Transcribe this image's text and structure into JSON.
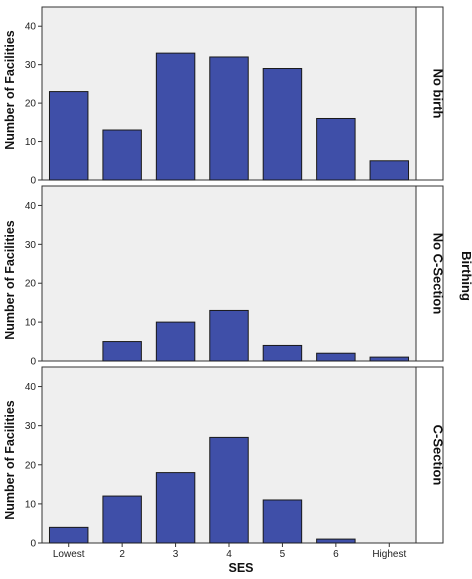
{
  "chart_data": {
    "type": "bar",
    "categories": [
      "Lowest",
      "2",
      "3",
      "4",
      "5",
      "6",
      "Highest"
    ],
    "xlabel": "SES",
    "ylabel": "Number of Facilities",
    "ylim": [
      0,
      45
    ],
    "yticks": [
      0,
      10,
      20,
      30,
      40
    ],
    "grid": false,
    "bar_color": "#3f4fa8",
    "panel_bg": "#efefef",
    "facet_group_label": "Birthing",
    "panels": [
      {
        "label": "No birth",
        "values": [
          23,
          13,
          33,
          32,
          29,
          16,
          5
        ]
      },
      {
        "label": "No C-Section",
        "values": [
          0,
          5,
          10,
          13,
          4,
          2,
          1
        ]
      },
      {
        "label": "C-Section",
        "values": [
          4,
          12,
          18,
          27,
          11,
          1,
          0
        ]
      }
    ]
  }
}
